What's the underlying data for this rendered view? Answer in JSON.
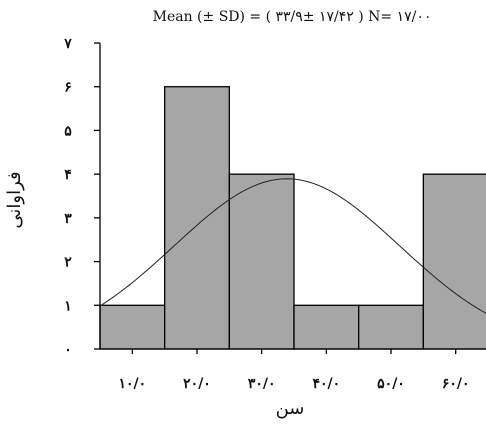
{
  "chart_data": {
    "type": "bar",
    "title": "Mean (± SD) = ( ۳۳/۹± ۱۷/۴۲ )     N= ۱۷/۰۰",
    "xlabel": "سن",
    "ylabel": "فراوانی",
    "ylim": [
      0,
      7
    ],
    "yticks": [
      {
        "value": 0,
        "label": "۰"
      },
      {
        "value": 1,
        "label": "۱"
      },
      {
        "value": 2,
        "label": "۲"
      },
      {
        "value": 3,
        "label": "۳"
      },
      {
        "value": 4,
        "label": "۴"
      },
      {
        "value": 5,
        "label": "۵"
      },
      {
        "value": 6,
        "label": "۶"
      },
      {
        "value": 7,
        "label": "۷"
      }
    ],
    "xlim": [
      5,
      65
    ],
    "xticks": [
      {
        "value": 10,
        "label": "۱۰/۰"
      },
      {
        "value": 20,
        "label": "۲۰/۰"
      },
      {
        "value": 30,
        "label": "۳۰/۰"
      },
      {
        "value": 40,
        "label": "۴۰/۰"
      },
      {
        "value": 50,
        "label": "۵۰/۰"
      },
      {
        "value": 60,
        "label": "۶۰/۰"
      }
    ],
    "bins": [
      {
        "from": 5,
        "to": 15,
        "count": 1
      },
      {
        "from": 15,
        "to": 25,
        "count": 6
      },
      {
        "from": 25,
        "to": 35,
        "count": 4
      },
      {
        "from": 35,
        "to": 45,
        "count": 1
      },
      {
        "from": 45,
        "to": 55,
        "count": 1
      },
      {
        "from": 55,
        "to": 65,
        "count": 4
      }
    ],
    "normal_curve": {
      "mean": 33.9,
      "sd": 17.42,
      "n": 17,
      "bin_width": 10
    },
    "bar_color": "#a6a6a6",
    "grid": false,
    "legend": "none"
  }
}
